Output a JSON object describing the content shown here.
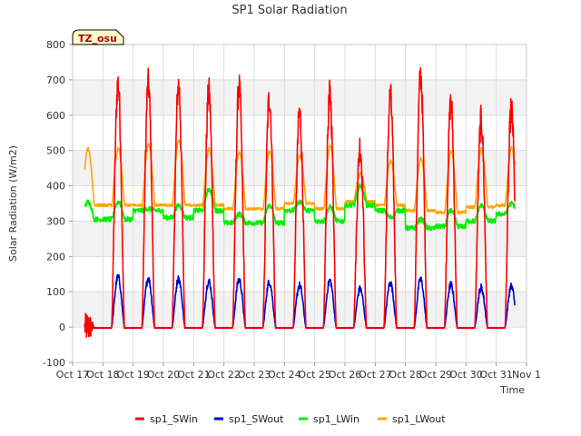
{
  "chart_data": {
    "type": "line",
    "title": "SP1 Solar Radiation",
    "xlabel": "Time",
    "ylabel": "Solar Radiation (W/m2)",
    "ylim": [
      -100,
      800
    ],
    "yticks": [
      -100,
      0,
      100,
      200,
      300,
      400,
      500,
      600,
      700,
      800
    ],
    "xlim": [
      17,
      32
    ],
    "xticks": [
      17,
      18,
      19,
      20,
      21,
      22,
      23,
      24,
      25,
      26,
      27,
      28,
      29,
      30,
      31,
      32
    ],
    "xtick_labels": [
      "Oct 17",
      "Oct 18",
      "Oct 19",
      "Oct 20",
      "Oct 21",
      "Oct 22",
      "Oct 23",
      "Oct 24",
      "Oct 25",
      "Oct 26",
      "Oct 27",
      "Oct 28",
      "Oct 29",
      "Oct 30",
      "Oct 31",
      "Nov 1"
    ],
    "grid": true,
    "background_bands": true,
    "annotation": "TZ_osu",
    "legend_position": "bottom",
    "series": [
      {
        "name": "sp1_SWin",
        "color": "#ff0000",
        "daily_peaks": [
          690,
          688,
          685,
          665,
          680,
          650,
          605,
          658,
          512,
          655,
          712,
          635,
          585,
          615
        ],
        "night_value": -3
      },
      {
        "name": "sp1_SWout",
        "color": "#0000cc",
        "daily_peaks": [
          142,
          138,
          137,
          130,
          135,
          128,
          118,
          132,
          108,
          125,
          135,
          120,
          112,
          115
        ],
        "night_value": -2
      },
      {
        "name": "sp1_LWin",
        "color": "#00ee00",
        "daily_peaks": [
          355,
          335,
          345,
          390,
          320,
          345,
          355,
          340,
          400,
          310,
          305,
          330,
          345,
          350
        ],
        "night_values": [
          305,
          330,
          310,
          330,
          295,
          295,
          330,
          300,
          345,
          330,
          280,
          285,
          300,
          320
        ]
      },
      {
        "name": "sp1_LWout",
        "color": "#ffa500",
        "daily_peaks": [
          505,
          518,
          530,
          505,
          495,
          498,
          485,
          512,
          435,
          470,
          478,
          498,
          505,
          508
        ],
        "night_values": [
          345,
          345,
          345,
          345,
          335,
          335,
          350,
          335,
          355,
          345,
          330,
          325,
          340,
          345
        ]
      }
    ]
  }
}
